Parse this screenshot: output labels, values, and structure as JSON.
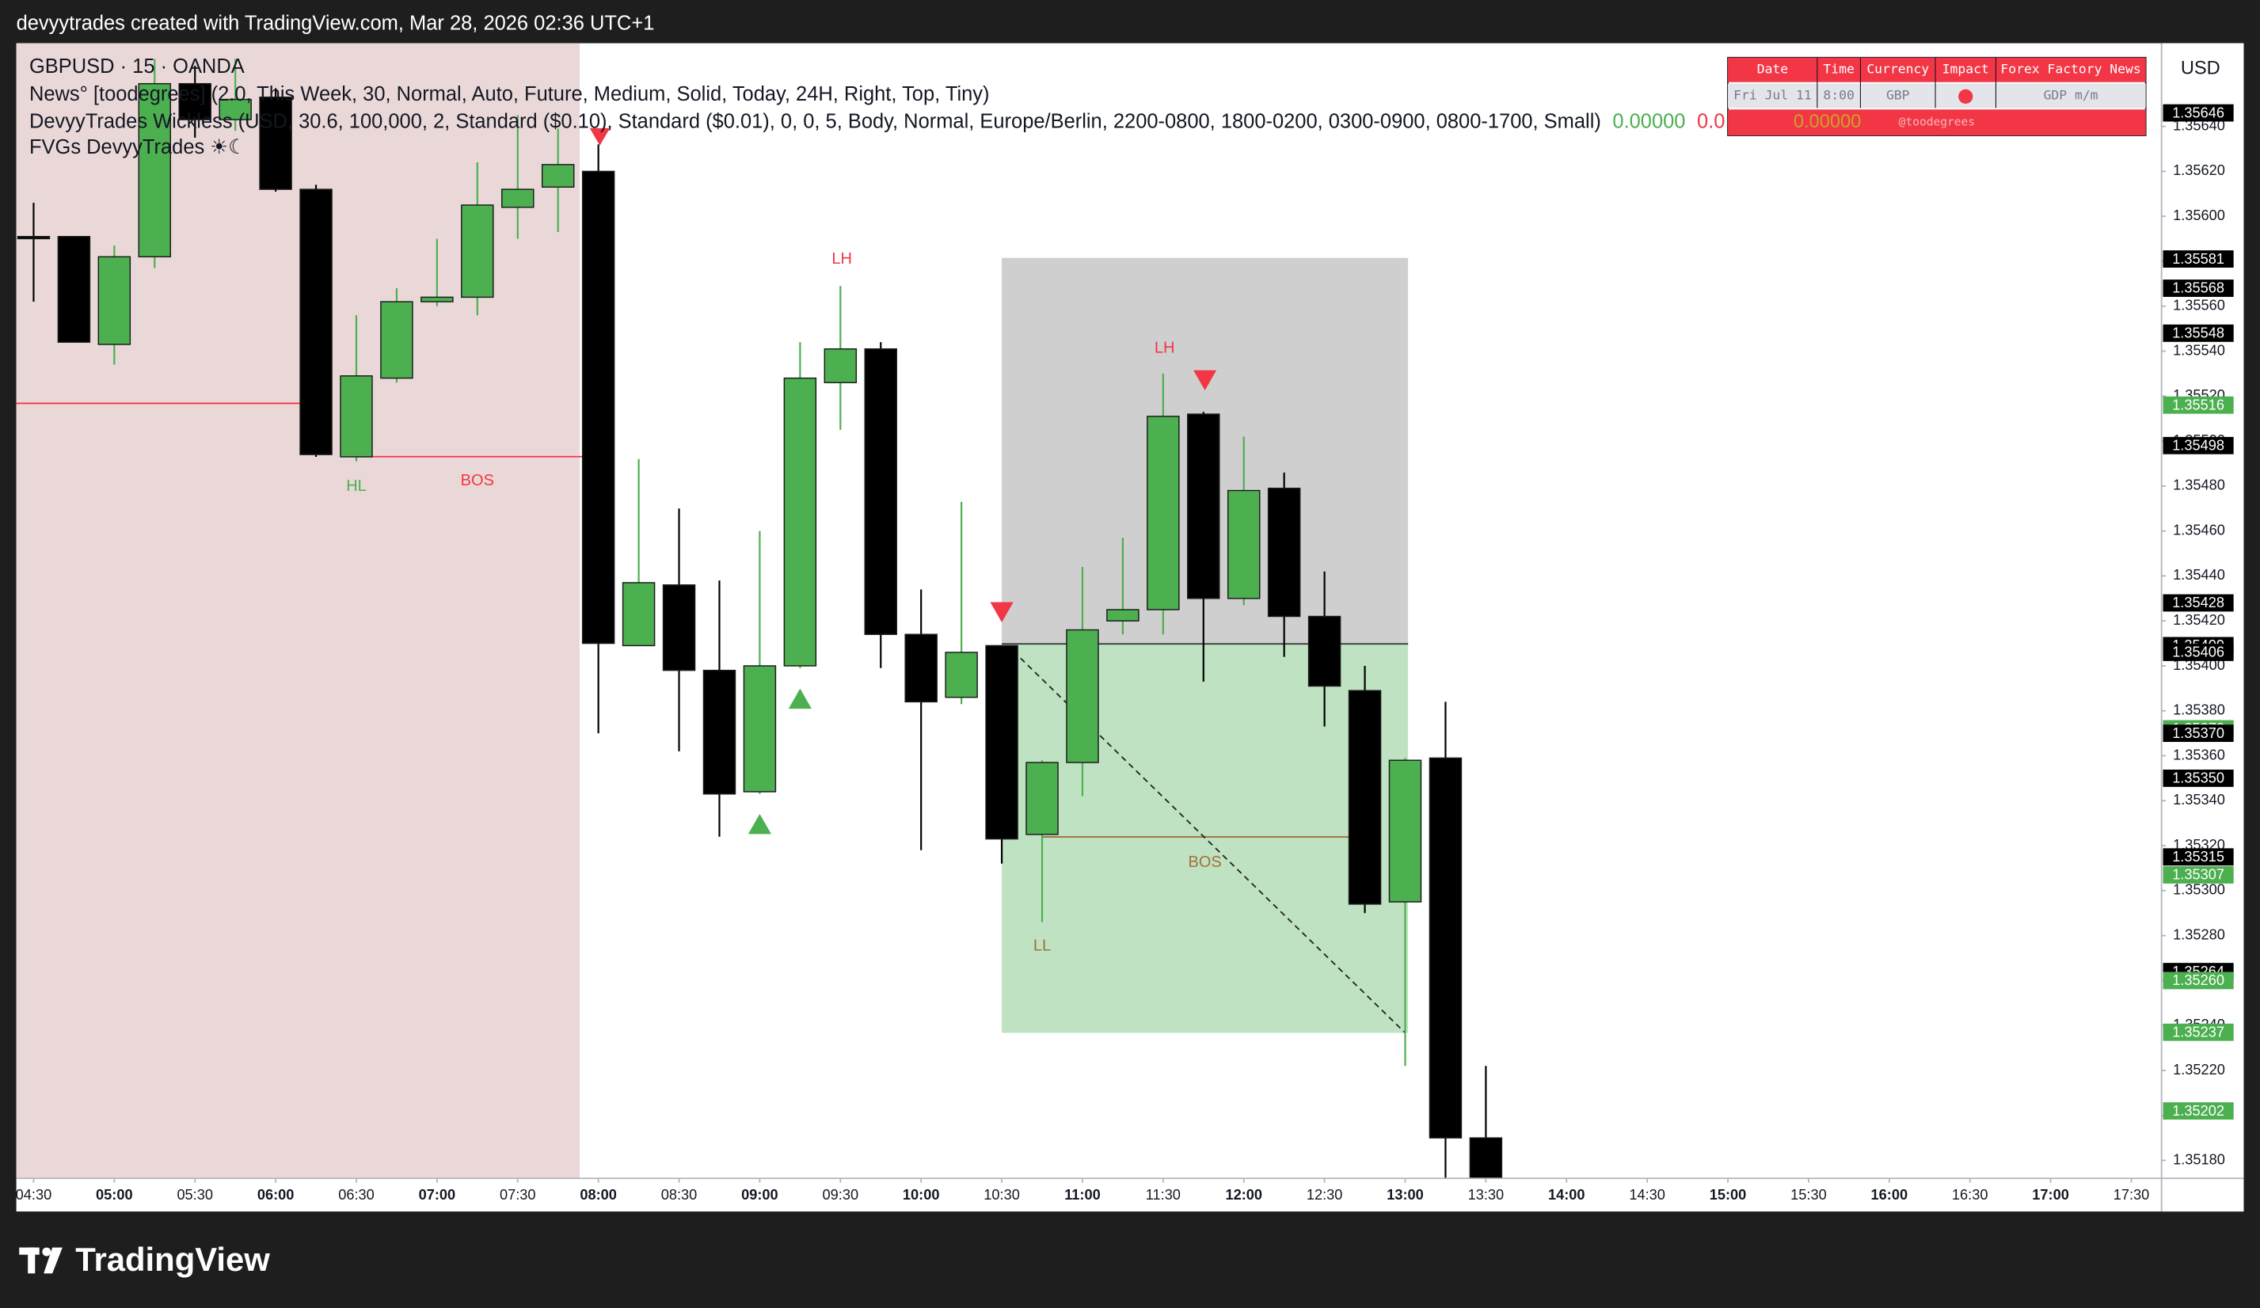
{
  "header": {
    "caption": "devyytrades created with TradingView.com, Mar 28, 2026 02:36 UTC+1"
  },
  "legend": {
    "symbol": "GBPUSD · 15 · OANDA",
    "news": "News° [toodegrees] (2.0, This Week, 30, Normal, Auto, Future, Medium, Solid, Today, 24H, Right, Top, Tiny)",
    "wickless": "DevyyTrades Wickless (USD, 30.6, 100,000, 2, Standard ($0.10), Standard ($0.01), 0, 0, 5, Body, Normal, Europe/Berlin, 2200-0800, 1800-0200, 0300-0900, 0800-1700, Small)",
    "wickless_values": [
      "0.00000",
      "0.0"
    ],
    "fvgs": "FVGs DevyyTrades ☀☾"
  },
  "news_table": {
    "header": [
      "Date",
      "Time",
      "Currency",
      "Impact",
      "Forex Factory News"
    ],
    "row": {
      "date": "Fri Jul 11",
      "time": "8:00",
      "currency": "GBP",
      "news": "GDP m/m"
    },
    "footer": "@toodegrees",
    "footer_value": "0.00000"
  },
  "price_axis": {
    "currency": "USD"
  },
  "footer": {
    "brand": "TradingView"
  },
  "chart_data": {
    "type": "candlestick",
    "x": [
      "04:30",
      "04:45",
      "05:00",
      "05:15",
      "05:30",
      "05:45",
      "06:00",
      "06:15",
      "06:30",
      "06:45",
      "07:00",
      "07:15",
      "07:30",
      "07:45",
      "08:00",
      "08:15",
      "08:30",
      "08:45",
      "09:00",
      "09:15",
      "09:30",
      "09:45",
      "10:00",
      "10:15",
      "10:30",
      "10:45",
      "11:00",
      "11:15",
      "11:30",
      "11:45",
      "12:00",
      "12:15",
      "12:30",
      "12:45",
      "13:00",
      "13:15",
      "13:30"
    ],
    "open": [
      1.35591,
      1.35591,
      1.35543,
      1.35582,
      1.35659,
      1.35643,
      1.35653,
      1.35612,
      1.35493,
      1.35528,
      1.35562,
      1.35564,
      1.35604,
      1.35613,
      1.3562,
      1.35409,
      1.35436,
      1.35398,
      1.35344,
      1.354,
      1.35526,
      1.35541,
      1.35414,
      1.35386,
      1.35409,
      1.35325,
      1.35357,
      1.3542,
      1.35425,
      1.35512,
      1.3543,
      1.35479,
      1.35422,
      1.35389,
      1.35295,
      1.35359,
      1.3519
    ],
    "high": [
      1.35606,
      1.35591,
      1.35587,
      1.3567,
      1.35667,
      1.3567,
      1.35657,
      1.35614,
      1.35556,
      1.35568,
      1.3559,
      1.35624,
      1.35645,
      1.35639,
      1.35632,
      1.35492,
      1.3547,
      1.35438,
      1.3546,
      1.35544,
      1.35569,
      1.35544,
      1.35434,
      1.35473,
      1.35409,
      1.35358,
      1.35444,
      1.35457,
      1.3553,
      1.35513,
      1.35502,
      1.35486,
      1.35442,
      1.354,
      1.35359,
      1.35384,
      1.35222
    ],
    "low": [
      1.35562,
      1.35544,
      1.35534,
      1.35577,
      1.35635,
      1.35638,
      1.35611,
      1.35493,
      1.35491,
      1.35526,
      1.3556,
      1.35556,
      1.3559,
      1.35593,
      1.3537,
      1.35409,
      1.35362,
      1.35324,
      1.35343,
      1.35399,
      1.35505,
      1.35399,
      1.35318,
      1.35383,
      1.35312,
      1.35286,
      1.35342,
      1.35414,
      1.35414,
      1.35393,
      1.35427,
      1.35404,
      1.35373,
      1.3529,
      1.35222,
      1.35164,
      1.3516
    ],
    "close": [
      1.35591,
      1.35544,
      1.35582,
      1.35659,
      1.35643,
      1.35652,
      1.35612,
      1.35494,
      1.35529,
      1.35562,
      1.35564,
      1.35605,
      1.35612,
      1.35623,
      1.3541,
      1.35437,
      1.35398,
      1.35343,
      1.354,
      1.35528,
      1.35541,
      1.35414,
      1.35384,
      1.35406,
      1.35323,
      1.35357,
      1.35416,
      1.35425,
      1.35511,
      1.3543,
      1.35478,
      1.35422,
      1.35391,
      1.35294,
      1.35358,
      1.3519,
      1.3517
    ],
    "up_color": "#4caf50",
    "down_color": "#000000",
    "ylim": [
      1.35172,
      1.35677
    ],
    "yticks": [
      {
        "value": 1.3564,
        "label": "1.35640"
      },
      {
        "value": 1.3562,
        "label": "1.35620"
      },
      {
        "value": 1.356,
        "label": "1.35600"
      },
      {
        "value": 1.3558,
        "label": "1.35580"
      },
      {
        "value": 1.3556,
        "label": "1.35560"
      },
      {
        "value": 1.3554,
        "label": "1.35540"
      },
      {
        "value": 1.3552,
        "label": "1.35520"
      },
      {
        "value": 1.355,
        "label": "1.35500"
      },
      {
        "value": 1.3548,
        "label": "1.35480"
      },
      {
        "value": 1.3546,
        "label": "1.35460"
      },
      {
        "value": 1.3544,
        "label": "1.35440"
      },
      {
        "value": 1.3542,
        "label": "1.35420"
      },
      {
        "value": 1.354,
        "label": "1.35400"
      },
      {
        "value": 1.3538,
        "label": "1.35380"
      },
      {
        "value": 1.3536,
        "label": "1.35360"
      },
      {
        "value": 1.3534,
        "label": "1.35340"
      },
      {
        "value": 1.3532,
        "label": "1.35320"
      },
      {
        "value": 1.353,
        "label": "1.35300"
      },
      {
        "value": 1.3528,
        "label": "1.35280"
      },
      {
        "value": 1.3526,
        "label": "1.35260"
      },
      {
        "value": 1.3524,
        "label": "1.35240"
      },
      {
        "value": 1.3522,
        "label": "1.35220"
      },
      {
        "value": 1.352,
        "label": "1.35200"
      },
      {
        "value": 1.3518,
        "label": "1.35180"
      }
    ],
    "xticks": [
      "04:30",
      "05:00",
      "05:30",
      "06:00",
      "06:30",
      "07:00",
      "07:30",
      "08:00",
      "08:30",
      "09:00",
      "09:30",
      "10:00",
      "10:30",
      "11:00",
      "11:30",
      "12:00",
      "12:30",
      "13:00",
      "13:30",
      "14:00",
      "14:30",
      "15:00",
      "15:30",
      "16:00",
      "16:30",
      "17:00",
      "17:30"
    ],
    "price_tags": [
      {
        "value": 1.35646,
        "label": "1.35646",
        "color": "#000000"
      },
      {
        "value": 1.35581,
        "label": "1.35581",
        "color": "#000000"
      },
      {
        "value": 1.35568,
        "label": "1.35568",
        "color": "#000000"
      },
      {
        "value": 1.35548,
        "label": "1.35548",
        "color": "#4caf50"
      },
      {
        "value": 1.35548,
        "label": "1.35548",
        "color": "#000000"
      },
      {
        "value": 1.35516,
        "label": "1.35516",
        "color": "#4caf50"
      },
      {
        "value": 1.35498,
        "label": "1.35498",
        "color": "#000000"
      },
      {
        "value": 1.35428,
        "label": "1.35428",
        "color": "#000000"
      },
      {
        "value": 1.35409,
        "label": "1.35409",
        "color": "#000000"
      },
      {
        "value": 1.35406,
        "label": "1.35406",
        "color": "#000000"
      },
      {
        "value": 1.35372,
        "label": "1.35372",
        "color": "#4caf50"
      },
      {
        "value": 1.3537,
        "label": "1.35370",
        "color": "#000000"
      },
      {
        "value": 1.3535,
        "label": "1.35350",
        "color": "#000000"
      },
      {
        "value": 1.35315,
        "label": "1.35315",
        "color": "#000000"
      },
      {
        "value": 1.35307,
        "label": "1.35307",
        "color": "#4caf50"
      },
      {
        "value": 1.35264,
        "label": "1.35264",
        "color": "#000000"
      },
      {
        "value": 1.3526,
        "label": "1.35260",
        "color": "#4caf50"
      },
      {
        "value": 1.35237,
        "label": "1.35237",
        "color": "#4caf50"
      },
      {
        "value": 1.35202,
        "label": "1.35202",
        "color": "#4caf50"
      }
    ],
    "annotations": [
      {
        "label": "HL",
        "color": "#4caf50"
      },
      {
        "label": "BOS",
        "color": "#f23645"
      },
      {
        "label": "LH",
        "color": "#f23645"
      },
      {
        "label": "LH",
        "color": "#f23645"
      },
      {
        "label": "LL",
        "color": "#a0703c"
      },
      {
        "label": "BOS",
        "color": "#a0703c"
      }
    ]
  }
}
